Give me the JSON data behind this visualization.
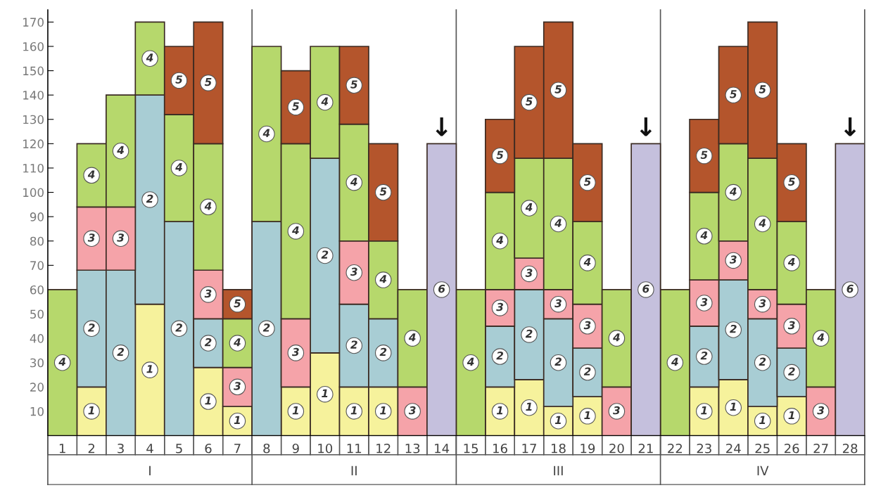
{
  "chart_data": {
    "type": "bar",
    "stacked": true,
    "categories": [
      "1",
      "2",
      "3",
      "4",
      "5",
      "6",
      "7",
      "8",
      "9",
      "10",
      "11",
      "12",
      "13",
      "14",
      "15",
      "16",
      "17",
      "18",
      "19",
      "20",
      "21",
      "22",
      "23",
      "24",
      "25",
      "26",
      "27",
      "28"
    ],
    "series": [
      {
        "name": "1",
        "color": "#f6f29c",
        "values": [
          null,
          20,
          null,
          54,
          null,
          28,
          12,
          null,
          20,
          34,
          20,
          20,
          null,
          null,
          null,
          20,
          23,
          12,
          16,
          null,
          null,
          null,
          20,
          23,
          12,
          16,
          null,
          null
        ]
      },
      {
        "name": "2",
        "color": "#a8cdd4",
        "values": [
          null,
          48,
          68,
          86,
          88,
          20,
          null,
          88,
          null,
          80,
          34,
          28,
          null,
          null,
          null,
          25,
          37,
          36,
          20,
          null,
          null,
          null,
          25,
          41,
          36,
          20,
          null,
          null
        ]
      },
      {
        "name": "3",
        "color": "#f5a3a9",
        "values": [
          null,
          26,
          26,
          null,
          null,
          20,
          16,
          null,
          28,
          null,
          26,
          null,
          20,
          null,
          null,
          15,
          13,
          12,
          18,
          20,
          null,
          null,
          19,
          16,
          12,
          18,
          20,
          null
        ]
      },
      {
        "name": "4",
        "color": "#b6d86c",
        "values": [
          60,
          26,
          46,
          30,
          44,
          52,
          20,
          72,
          72,
          46,
          48,
          32,
          40,
          null,
          60,
          40,
          41,
          54,
          34,
          40,
          null,
          60,
          36,
          40,
          54,
          34,
          40,
          null
        ]
      },
      {
        "name": "5",
        "color": "#b4552c",
        "values": [
          null,
          null,
          null,
          null,
          28,
          50,
          12,
          null,
          30,
          null,
          32,
          40,
          null,
          null,
          null,
          30,
          46,
          56,
          32,
          null,
          null,
          null,
          30,
          40,
          56,
          32,
          null,
          null
        ]
      },
      {
        "name": "6",
        "color": "#c5c0dd",
        "values": [
          null,
          null,
          null,
          null,
          null,
          null,
          null,
          null,
          null,
          null,
          null,
          null,
          null,
          120,
          null,
          null,
          null,
          null,
          null,
          null,
          120,
          null,
          null,
          null,
          null,
          null,
          null,
          120
        ]
      }
    ],
    "ylim": [
      0,
      175
    ],
    "yticks": [
      10,
      20,
      30,
      40,
      50,
      60,
      70,
      80,
      90,
      100,
      110,
      120,
      130,
      140,
      150,
      160,
      170
    ],
    "grid": false,
    "legend": false,
    "annotations": [
      "I",
      "II",
      "III",
      "IV",
      {
        "text": "↓",
        "x": "14",
        "y": 120
      },
      {
        "text": "↓",
        "x": "21",
        "y": 120
      },
      {
        "text": "↓",
        "x": "28",
        "y": 120
      }
    ]
  }
}
